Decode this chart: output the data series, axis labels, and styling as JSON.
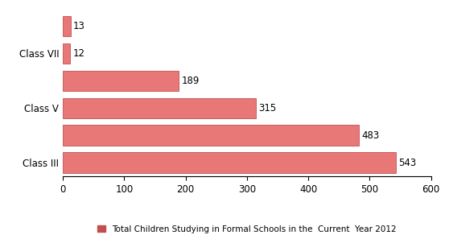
{
  "display_labels": [
    "Class III",
    "",
    "Class V",
    "",
    "Class VII",
    ""
  ],
  "values": [
    543,
    483,
    315,
    189,
    12,
    13
  ],
  "bar_color": "#E87878",
  "bar_edge_color": "#C0504D",
  "xlim": [
    0,
    600
  ],
  "xticks": [
    0,
    100,
    200,
    300,
    400,
    500,
    600
  ],
  "legend_label": "Total Children Studying in Formal Schools in the  Current  Year 2012",
  "legend_color": "#C0504D",
  "background_color": "#FFFFFF",
  "bar_height": 0.75,
  "value_fontsize": 8.5,
  "label_fontsize": 8.5,
  "tick_fontsize": 8.5
}
